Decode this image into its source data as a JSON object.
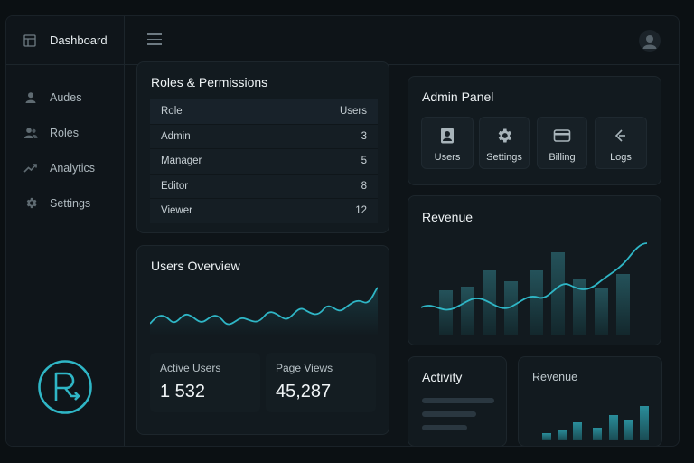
{
  "sidebar": {
    "title": "Dashboard",
    "items": [
      {
        "label": "Audes",
        "icon": "user-icon"
      },
      {
        "label": "Roles",
        "icon": "users-icon"
      },
      {
        "label": "Analytics",
        "icon": "trend-icon"
      },
      {
        "label": "Settings",
        "icon": "gear-icon"
      }
    ]
  },
  "roles": {
    "title": "Roles & Permissions",
    "columns": [
      "Role",
      "Users"
    ],
    "rows": [
      {
        "role": "Admin",
        "users": "3"
      },
      {
        "role": "Manager",
        "users": "5"
      },
      {
        "role": "Editor",
        "users": "8"
      },
      {
        "role": "Viewer",
        "users": "12"
      }
    ]
  },
  "users_overview": {
    "title": "Users Overview",
    "stats": [
      {
        "label": "Active Users",
        "value": "1 532"
      },
      {
        "label": "Page Views",
        "value": "45,287"
      }
    ]
  },
  "admin": {
    "title": "Admin Panel",
    "tiles": [
      {
        "label": "Users",
        "icon": "id-card-icon"
      },
      {
        "label": "Settings",
        "icon": "gear-icon"
      },
      {
        "label": "Billing",
        "icon": "credit-card-icon"
      },
      {
        "label": "Logs",
        "icon": "arrow-left-icon"
      }
    ]
  },
  "revenue": {
    "title": "Revenue"
  },
  "activity": {
    "title": "Activity"
  },
  "revenue_small": {
    "title": "Revenue"
  },
  "colors": {
    "accent": "#2fb6c6",
    "background": "#0b1013",
    "card": "#121a1f",
    "bar": "#1f4a52"
  }
}
